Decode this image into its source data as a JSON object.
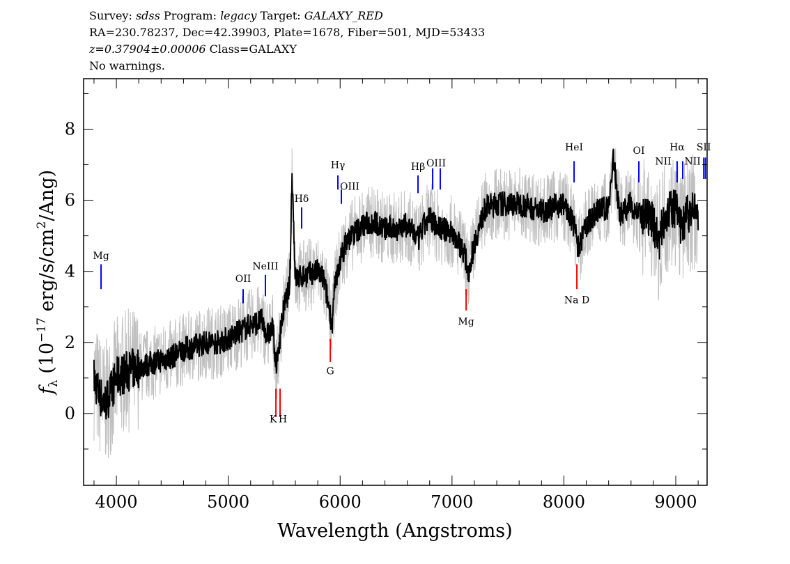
{
  "header": {
    "line1": {
      "survey_label": "Survey:",
      "survey": "sdss",
      "program_label": "Program:",
      "program": "legacy",
      "target_label": "Target:",
      "target": "GALAXY_RED"
    },
    "line2": "RA=230.78237, Dec=42.39903, Plate=1678, Fiber=501, MJD=53433",
    "line3": {
      "redshift": "z=0.37904±0.00006",
      "class": "Class=GALAXY"
    },
    "line4": "No warnings."
  },
  "chart_data": {
    "type": "line",
    "xlabel": "Wavelength (Angstroms)",
    "ylabel": "f_λ (10^-17 erg/s/cm²/Ang)",
    "ylabel_parts": {
      "f": "f",
      "sub": "λ",
      "pre": " (10",
      "sup": "−17",
      "mid": " erg/s/cm",
      "sup2": "2",
      "post": "/Ang)"
    },
    "xlim": [
      3707,
      9280
    ],
    "ylim": [
      -2.02,
      9.42
    ],
    "xticks": [
      4000,
      5000,
      6000,
      7000,
      8000,
      9000
    ],
    "xtick_labels": [
      "4000",
      "5000",
      "6000",
      "7000",
      "8000",
      "9000"
    ],
    "yticks": [
      0,
      2,
      4,
      6,
      8
    ],
    "ytick_labels": [
      "0",
      "2",
      "4",
      "6",
      "8"
    ],
    "grid": false,
    "colors": {
      "flux": "#000000",
      "error_band": "#c0c0c0",
      "emission": "#0000ff",
      "absorption": "#ff0000"
    },
    "series": [
      {
        "role": "smoothed flux",
        "color": "#000000",
        "x": [
          3800,
          3850,
          3900,
          3950,
          4000,
          4100,
          4200,
          4300,
          4400,
          4500,
          4600,
          4700,
          4800,
          4900,
          5000,
          5100,
          5200,
          5300,
          5350,
          5400,
          5430,
          5470,
          5500,
          5550,
          5570,
          5600,
          5700,
          5800,
          5850,
          5900,
          5930,
          5950,
          6000,
          6050,
          6100,
          6200,
          6300,
          6400,
          6500,
          6600,
          6700,
          6750,
          6800,
          6900,
          7000,
          7100,
          7150,
          7200,
          7300,
          7400,
          7500,
          7600,
          7700,
          7800,
          7900,
          8000,
          8100,
          8130,
          8200,
          8300,
          8400,
          8440,
          8500,
          8600,
          8700,
          8800,
          8850,
          8900,
          9000,
          9050,
          9100,
          9200
        ],
        "y": [
          1.0,
          0.5,
          0.3,
          0.6,
          1.0,
          1.2,
          1.3,
          1.4,
          1.5,
          1.6,
          1.8,
          1.9,
          2.0,
          2.0,
          2.1,
          2.3,
          2.5,
          2.6,
          2.2,
          2.4,
          1.2,
          2.4,
          3.0,
          3.6,
          6.8,
          3.8,
          3.9,
          4.0,
          3.8,
          3.0,
          2.5,
          3.5,
          4.3,
          4.8,
          5.0,
          5.3,
          5.4,
          5.2,
          5.2,
          5.3,
          4.9,
          5.3,
          5.5,
          5.2,
          5.1,
          4.6,
          4.0,
          4.8,
          5.8,
          5.9,
          5.9,
          5.9,
          5.8,
          5.7,
          5.8,
          5.9,
          5.2,
          4.6,
          5.3,
          5.7,
          5.8,
          7.2,
          5.6,
          5.9,
          5.5,
          5.4,
          4.8,
          5.6,
          5.8,
          5.2,
          5.6,
          5.7
        ]
      }
    ],
    "lines": [
      {
        "label": "Mg",
        "wavelength": 3863,
        "type": "emission",
        "y1": 3.5,
        "y2": 4.2,
        "label_y": 4.35
      },
      {
        "label": "OII",
        "wavelength": 5133,
        "type": "emission",
        "y1": 3.1,
        "y2": 3.5,
        "label_y": 3.7
      },
      {
        "label": "NeIII",
        "wavelength": 5332,
        "type": "emission",
        "y1": 3.3,
        "y2": 3.9,
        "label_y": 4.05
      },
      {
        "label": "Hδ",
        "wavelength": 5656,
        "type": "emission",
        "y1": 5.2,
        "y2": 5.8,
        "label_y": 5.95
      },
      {
        "label": "Hγ",
        "wavelength": 5980,
        "type": "emission",
        "y1": 6.3,
        "y2": 6.7,
        "label_y": 6.9
      },
      {
        "label": "OIII",
        "wavelength": 6011,
        "type": "emission",
        "y1": 5.9,
        "y2": 6.3,
        "label_y": 6.3,
        "label_dx": 12
      },
      {
        "label": "Hβ",
        "wavelength": 6696,
        "type": "emission",
        "y1": 6.2,
        "y2": 6.7,
        "label_y": 6.85
      },
      {
        "label": "",
        "wavelength": 6827,
        "type": "emission",
        "y1": 6.3,
        "y2": 6.9
      },
      {
        "label": "OIII",
        "wavelength": 6895,
        "type": "emission",
        "y1": 6.3,
        "y2": 6.9,
        "label_y": 6.95,
        "label_dx": -6
      },
      {
        "label": "HeI",
        "wavelength": 8091,
        "type": "emission",
        "y1": 6.5,
        "y2": 7.1,
        "label_y": 7.4
      },
      {
        "label": "OI",
        "wavelength": 8670,
        "type": "emission",
        "y1": 6.5,
        "y2": 7.1,
        "label_y": 7.3
      },
      {
        "label": "NII",
        "wavelength": 8888,
        "type": "emission",
        "y1": 6.9,
        "y2": 6.9,
        "label_y": 7.0
      },
      {
        "label": "Hα",
        "wavelength": 9012,
        "type": "emission",
        "y1": 6.5,
        "y2": 7.1,
        "label_y": 7.4
      },
      {
        "label": "",
        "wavelength": 9062,
        "type": "emission",
        "y1": 6.6,
        "y2": 7.1
      },
      {
        "label": "NII",
        "wavelength": 9150,
        "type": "emission",
        "y1": 7.0,
        "y2": 7.0,
        "label_y": 7.0
      },
      {
        "label": "SII",
        "wavelength": 9250,
        "type": "emission",
        "y1": 6.6,
        "y2": 7.2,
        "label_y": 7.4
      },
      {
        "label": "",
        "wavelength": 9265,
        "type": "emission",
        "y1": 6.6,
        "y2": 7.2
      },
      {
        "label": "K",
        "wavelength": 5426,
        "type": "absorption",
        "y1": 0.7,
        "y2": -0.1,
        "label_y": -0.25,
        "label_dx": -4
      },
      {
        "label": "H",
        "wavelength": 5463,
        "type": "absorption",
        "y1": 0.7,
        "y2": -0.1,
        "label_y": -0.25,
        "label_dx": 4
      },
      {
        "label": "G",
        "wavelength": 5912,
        "type": "absorption",
        "y1": 2.1,
        "y2": 1.45,
        "label_y": 1.1
      },
      {
        "label": "Mg",
        "wavelength": 7126,
        "type": "absorption",
        "y1": 3.5,
        "y2": 2.9,
        "label_y": 2.5
      },
      {
        "label": "Na D",
        "wavelength": 8116,
        "type": "absorption",
        "y1": 4.2,
        "y2": 3.5,
        "label_y": 3.1
      }
    ]
  }
}
